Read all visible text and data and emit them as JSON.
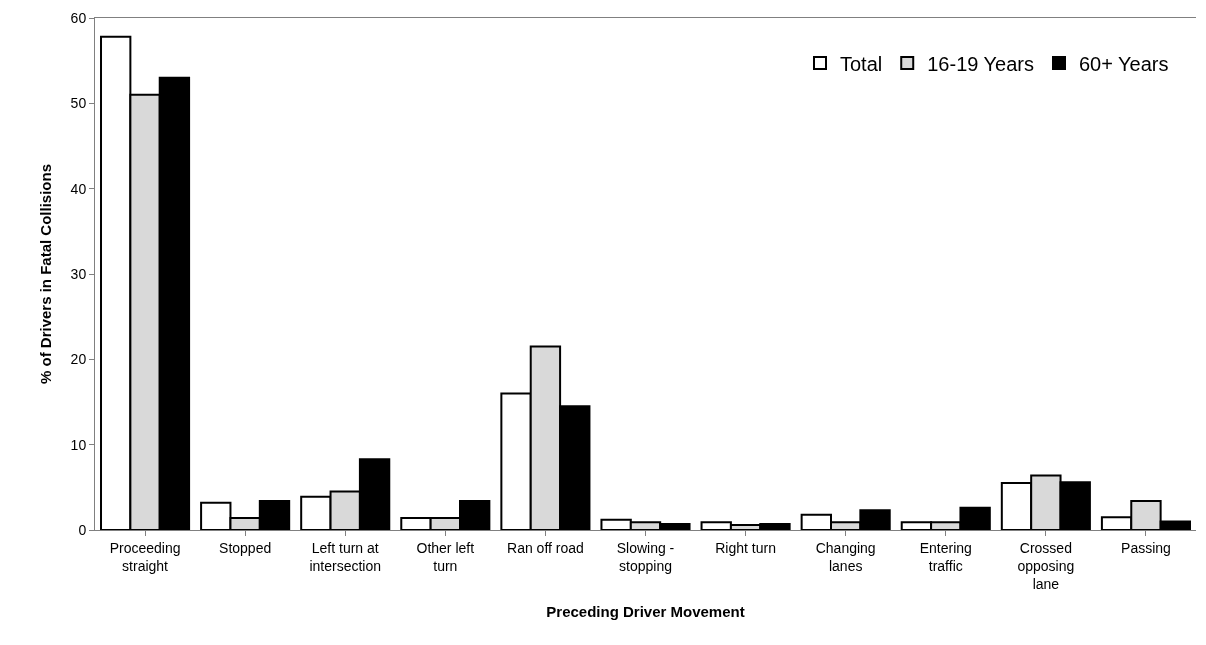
{
  "chart_data": {
    "type": "bar",
    "xlabel": "Preceding Driver Movement",
    "ylabel": "% of Drivers in Fatal Collisions",
    "categories": [
      "Proceeding straight",
      "Stopped",
      "Left turn at intersection",
      "Other left turn",
      "Ran off road",
      "Slowing - stopping",
      "Right turn",
      "Changing lanes",
      "Entering traffic",
      "Crossed opposing lane",
      "Passing"
    ],
    "series": [
      {
        "name": "Total",
        "color": "#ffffff",
        "values": [
          57.8,
          3.2,
          3.9,
          1.4,
          16.0,
          1.2,
          0.9,
          1.8,
          0.9,
          5.5,
          1.5
        ]
      },
      {
        "name": "16-19 Years",
        "color": "#d9d9d9",
        "values": [
          51.0,
          1.4,
          4.5,
          1.4,
          21.5,
          0.9,
          0.6,
          0.9,
          0.9,
          6.4,
          3.4
        ]
      },
      {
        "name": "60+ Years",
        "color": "#000000",
        "values": [
          53.0,
          3.4,
          8.3,
          3.4,
          14.5,
          0.7,
          0.7,
          2.3,
          2.6,
          5.6,
          1.0
        ]
      }
    ],
    "ylim": [
      0,
      60
    ],
    "yticks": [
      0,
      10,
      20,
      30,
      40,
      50,
      60
    ],
    "legend": "top right"
  }
}
